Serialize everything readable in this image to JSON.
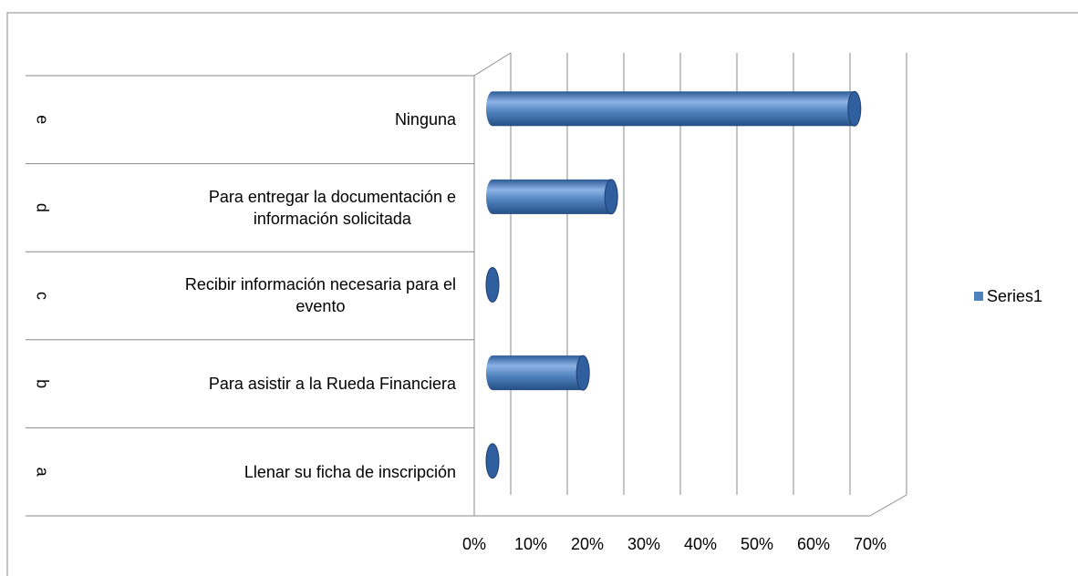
{
  "chart_data": {
    "type": "bar3d_horizontal",
    "outer_categories": [
      "a",
      "b",
      "c",
      "d",
      "e"
    ],
    "categories": [
      "Llenar su ficha de inscripción",
      "Para asistir a la Rueda Financiera",
      "Recibir  información necesaria para el\nevento",
      "Para entregar la documentación e\ninformación  solicitada",
      "Ninguna"
    ],
    "series": [
      {
        "name": "Series1",
        "color": "#4f81bd",
        "values": [
          0,
          16,
          0,
          21,
          64
        ]
      }
    ],
    "xlim": [
      0,
      70
    ],
    "xticks": [
      {
        "value": 0,
        "label": "0%"
      },
      {
        "value": 10,
        "label": "10%"
      },
      {
        "value": 20,
        "label": "20%"
      },
      {
        "value": 30,
        "label": "30%"
      },
      {
        "value": 40,
        "label": "40%"
      },
      {
        "value": 50,
        "label": "50%"
      },
      {
        "value": 60,
        "label": "60%"
      },
      {
        "value": 70,
        "label": "70%"
      }
    ],
    "grid": true,
    "legend": "right"
  }
}
